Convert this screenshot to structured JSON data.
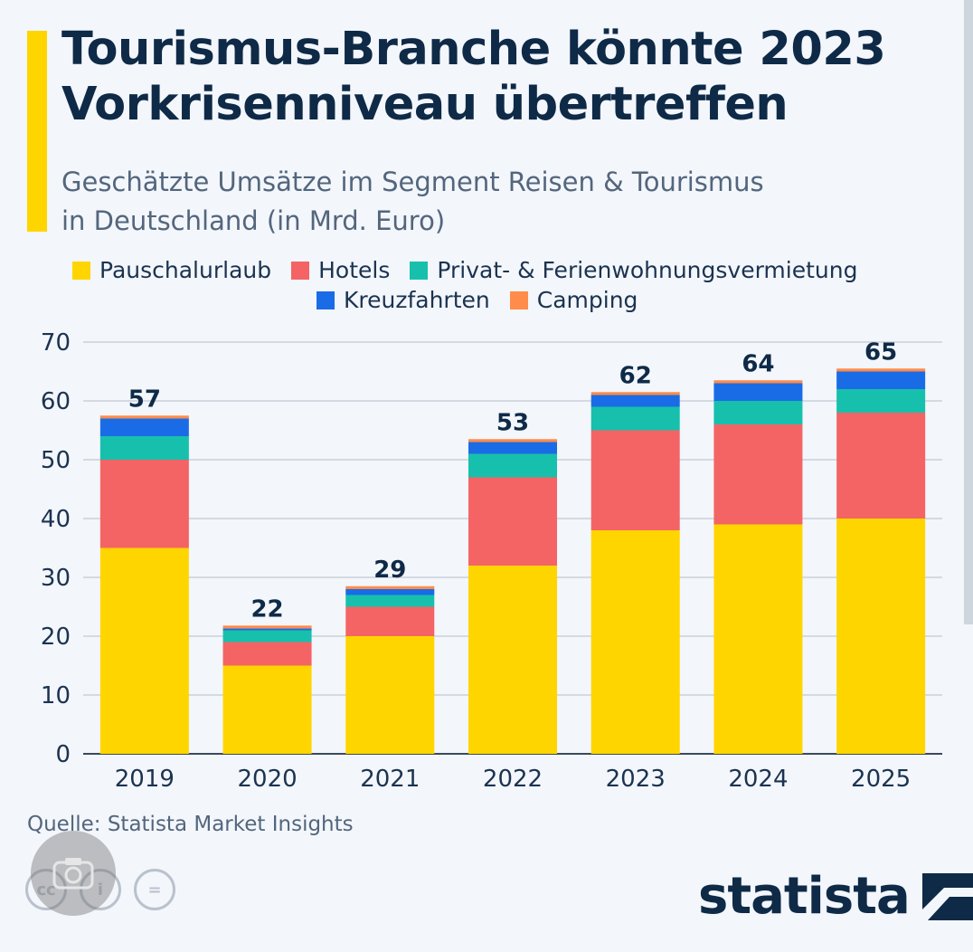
{
  "header": {
    "title_line1": "Tourismus-Branche könnte 2023",
    "title_line2": "Vorkrisenniveau übertreffen",
    "subtitle_line1": "Geschätzte Umsätze im Segment Reisen & Tourismus",
    "subtitle_line2": "in Deutschland (in Mrd. Euro)"
  },
  "source": "Quelle: Statista Market Insights",
  "logo": {
    "text": "statista"
  },
  "colors": {
    "accent": "#ffd500",
    "pauschal": "#ffd500",
    "hotels": "#f46465",
    "privat": "#17c0ac",
    "kreuz": "#1a6ce6",
    "camping": "#ff8c4b",
    "text": "#0e2a47"
  },
  "chart_data": {
    "type": "bar",
    "stacked": true,
    "categories": [
      "2019",
      "2020",
      "2021",
      "2022",
      "2023",
      "2024",
      "2025"
    ],
    "series": [
      {
        "name": "Pauschalurlaub",
        "color": "#ffd500",
        "values": [
          35,
          15,
          20,
          32,
          38,
          39,
          40
        ]
      },
      {
        "name": "Hotels",
        "color": "#f46465",
        "values": [
          15,
          4,
          5,
          15,
          17,
          17,
          18
        ]
      },
      {
        "name": "Privat- & Ferienwohnungsvermietung",
        "color": "#17c0ac",
        "values": [
          4,
          2,
          2,
          4,
          4,
          4,
          4
        ]
      },
      {
        "name": "Kreuzfahrten",
        "color": "#1a6ce6",
        "values": [
          3,
          0.3,
          1,
          2,
          2,
          3,
          3
        ]
      },
      {
        "name": "Camping",
        "color": "#ff8c4b",
        "values": [
          0.5,
          0.5,
          0.5,
          0.5,
          0.5,
          0.5,
          0.5
        ]
      }
    ],
    "totals": [
      "57",
      "22",
      "29",
      "53",
      "62",
      "64",
      "65"
    ],
    "ylim": [
      0,
      70
    ],
    "yticks": [
      "0",
      "10",
      "20",
      "30",
      "40",
      "50",
      "60",
      "70"
    ],
    "grid": true,
    "legend_position": "top"
  }
}
